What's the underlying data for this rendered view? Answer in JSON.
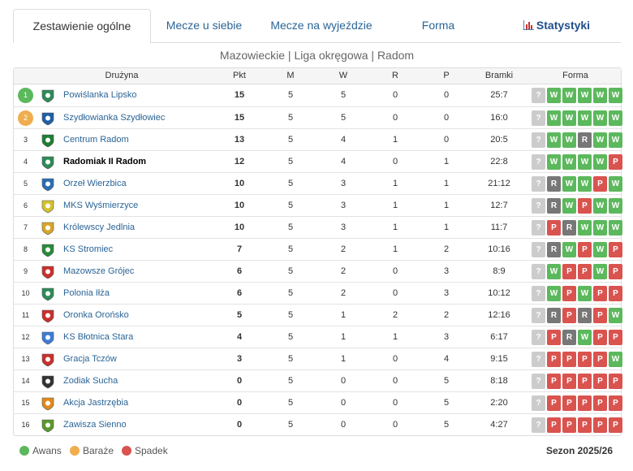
{
  "tabs": [
    "Zestawienie ogólne",
    "Mecze u siebie",
    "Mecze na wyjeździe",
    "Forma",
    "Statystyki"
  ],
  "subtitle": "Mazowieckie | Liga okręgowa | Radom",
  "table": {
    "header": [
      "Drużyna",
      "Pkt",
      "M",
      "W",
      "R",
      "P",
      "Bramki",
      "Forma"
    ],
    "rows": [
      {
        "rank": 1,
        "team": "Powiślanka Lipsko",
        "stats": [
          15,
          5,
          5,
          0,
          0
        ],
        "goals": "25:7",
        "form": [
          "?",
          "W",
          "W",
          "W",
          "W",
          "W"
        ],
        "zone": 0
      },
      {
        "rank": 2,
        "team": "Szydłowianka Szydłowiec",
        "stats": [
          15,
          5,
          5,
          0,
          0
        ],
        "goals": "16:0",
        "form": [
          "?",
          "W",
          "W",
          "W",
          "W",
          "W"
        ],
        "zone": 1
      },
      {
        "rank": 3,
        "team": "Centrum Radom",
        "stats": [
          13,
          5,
          4,
          1,
          0
        ],
        "goals": "20:5",
        "form": [
          "?",
          "W",
          "W",
          "R",
          "W",
          "W"
        ]
      },
      {
        "rank": 4,
        "team": "Radomiak II Radom",
        "stats": [
          12,
          5,
          4,
          0,
          1
        ],
        "goals": "22:8",
        "form": [
          "?",
          "W",
          "W",
          "W",
          "W",
          "P"
        ],
        "highlight": true
      },
      {
        "rank": 5,
        "team": "Orzeł Wierzbica",
        "stats": [
          10,
          5,
          3,
          1,
          1
        ],
        "goals": "21:12",
        "form": [
          "?",
          "R",
          "W",
          "W",
          "P",
          "W"
        ]
      },
      {
        "rank": 6,
        "team": "MKS Wyśmierzyce",
        "stats": [
          10,
          5,
          3,
          1,
          1
        ],
        "goals": "12:7",
        "form": [
          "?",
          "R",
          "W",
          "P",
          "W",
          "W"
        ]
      },
      {
        "rank": 7,
        "team": "Królewscy Jedlnia",
        "stats": [
          10,
          5,
          3,
          1,
          1
        ],
        "goals": "11:7",
        "form": [
          "?",
          "P",
          "R",
          "W",
          "W",
          "W"
        ]
      },
      {
        "rank": 8,
        "team": "KS Stromiec",
        "stats": [
          7,
          5,
          2,
          1,
          2
        ],
        "goals": "10:16",
        "form": [
          "?",
          "R",
          "W",
          "P",
          "W",
          "P"
        ]
      },
      {
        "rank": 9,
        "team": "Mazowsze Grójec",
        "stats": [
          6,
          5,
          2,
          0,
          3
        ],
        "goals": "8:9",
        "form": [
          "?",
          "W",
          "P",
          "P",
          "W",
          "P"
        ]
      },
      {
        "rank": 10,
        "team": "Polonia Iłża",
        "stats": [
          6,
          5,
          2,
          0,
          3
        ],
        "goals": "10:12",
        "form": [
          "?",
          "W",
          "P",
          "W",
          "P",
          "P"
        ]
      },
      {
        "rank": 11,
        "team": "Oronka Orońsko",
        "stats": [
          5,
          5,
          1,
          2,
          2
        ],
        "goals": "12:16",
        "form": [
          "?",
          "R",
          "P",
          "R",
          "P",
          "W"
        ]
      },
      {
        "rank": 12,
        "team": "KS Błotnica Stara",
        "stats": [
          4,
          5,
          1,
          1,
          3
        ],
        "goals": "6:17",
        "form": [
          "?",
          "P",
          "R",
          "W",
          "P",
          "P"
        ]
      },
      {
        "rank": 13,
        "team": "Gracja Tczów",
        "stats": [
          3,
          5,
          1,
          0,
          4
        ],
        "goals": "9:15",
        "form": [
          "?",
          "P",
          "P",
          "P",
          "P",
          "W"
        ]
      },
      {
        "rank": 14,
        "team": "Zodiak Sucha",
        "stats": [
          0,
          5,
          0,
          0,
          5
        ],
        "goals": "8:18",
        "form": [
          "?",
          "P",
          "P",
          "P",
          "P",
          "P"
        ]
      },
      {
        "rank": 15,
        "team": "Akcja Jastrzębia",
        "stats": [
          0,
          5,
          0,
          0,
          5
        ],
        "goals": "2:20",
        "form": [
          "?",
          "P",
          "P",
          "P",
          "P",
          "P"
        ]
      },
      {
        "rank": 16,
        "team": "Zawisza Sienno",
        "stats": [
          0,
          5,
          0,
          0,
          5
        ],
        "goals": "4:27",
        "form": [
          "?",
          "P",
          "P",
          "P",
          "P",
          "P"
        ]
      }
    ]
  },
  "legend": [
    {
      "label": "Awans",
      "color": "#5cb85c"
    },
    {
      "label": "Baraże",
      "color": "#f0ad4e"
    },
    {
      "label": "Spadek",
      "color": "#d9534f"
    }
  ],
  "season": "Sezon 2025/26"
}
